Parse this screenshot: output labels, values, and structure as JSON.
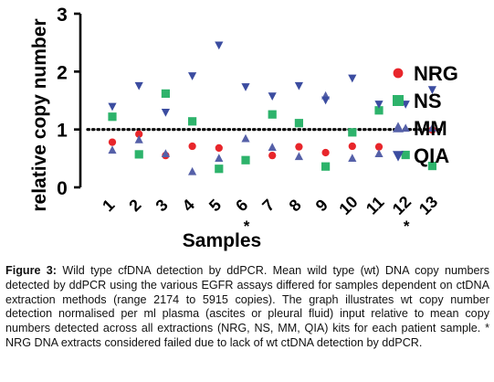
{
  "chart_data": {
    "type": "scatter",
    "xlabel": "Samples",
    "ylabel": "relative copy number",
    "categories": [
      "1",
      "2",
      "3",
      "4",
      "5",
      "6",
      "7",
      "8",
      "9",
      "10",
      "11",
      "12",
      "13"
    ],
    "ylim": [
      0,
      3
    ],
    "yticks": [
      "0",
      "1",
      "2",
      "3"
    ],
    "reference_line": 1,
    "reference_line_style": "dotted",
    "failed_markers": [
      "*",
      "*"
    ],
    "failed_categories": [
      "6",
      "12"
    ],
    "legend_position": "right",
    "series": [
      {
        "name": "NRG",
        "color": "#e8262b",
        "marker": "circle",
        "values": [
          0.78,
          0.92,
          0.55,
          0.71,
          0.68,
          null,
          0.55,
          0.7,
          0.6,
          0.71,
          0.7,
          null,
          0.99
        ]
      },
      {
        "name": "NS",
        "color": "#2db36b",
        "marker": "square",
        "values": [
          1.22,
          0.57,
          1.62,
          1.14,
          0.32,
          0.47,
          1.26,
          1.11,
          0.36,
          0.95,
          1.33,
          0.56,
          0.37
        ]
      },
      {
        "name": "MM",
        "color": "#5560a8",
        "marker": "triangle-up",
        "values": [
          0.64,
          0.82,
          0.58,
          0.27,
          0.5,
          0.84,
          0.69,
          0.53,
          1.58,
          0.5,
          0.58,
          1.02,
          1.02
        ]
      },
      {
        "name": "QIA",
        "color": "#3b4ca0",
        "marker": "triangle-down",
        "values": [
          1.4,
          1.76,
          1.3,
          1.93,
          2.46,
          1.74,
          1.58,
          1.76,
          1.51,
          1.89,
          1.44,
          1.44,
          1.69
        ]
      }
    ]
  },
  "caption": {
    "label": "Figure 3:",
    "text": "Wild type cfDNA detection by ddPCR. Mean wild type (wt) DNA copy numbers detected by ddPCR using the various EGFR assays differed for samples dependent on ctDNA extraction methods (range 2174 to 5915 copies). The graph illustrates wt copy number detection normalised per ml plasma (ascites or pleural fluid) input relative to mean copy numbers detected across all extractions (NRG, NS, MM, QIA) kits for each patient sample. * NRG DNA extracts considered failed due to lack of wt ctDNA detection by ddPCR."
  }
}
